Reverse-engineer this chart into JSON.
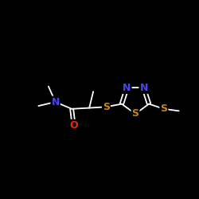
{
  "bg_color": "#000000",
  "bond_color": "#ffffff",
  "N_color": "#4444ff",
  "O_color": "#ff2200",
  "S_color": "#cc8800",
  "font_size_atom": 9,
  "figsize": [
    2.5,
    2.5
  ],
  "dpi": 100,
  "xlim": [
    0,
    10
  ],
  "ylim": [
    0,
    10
  ]
}
